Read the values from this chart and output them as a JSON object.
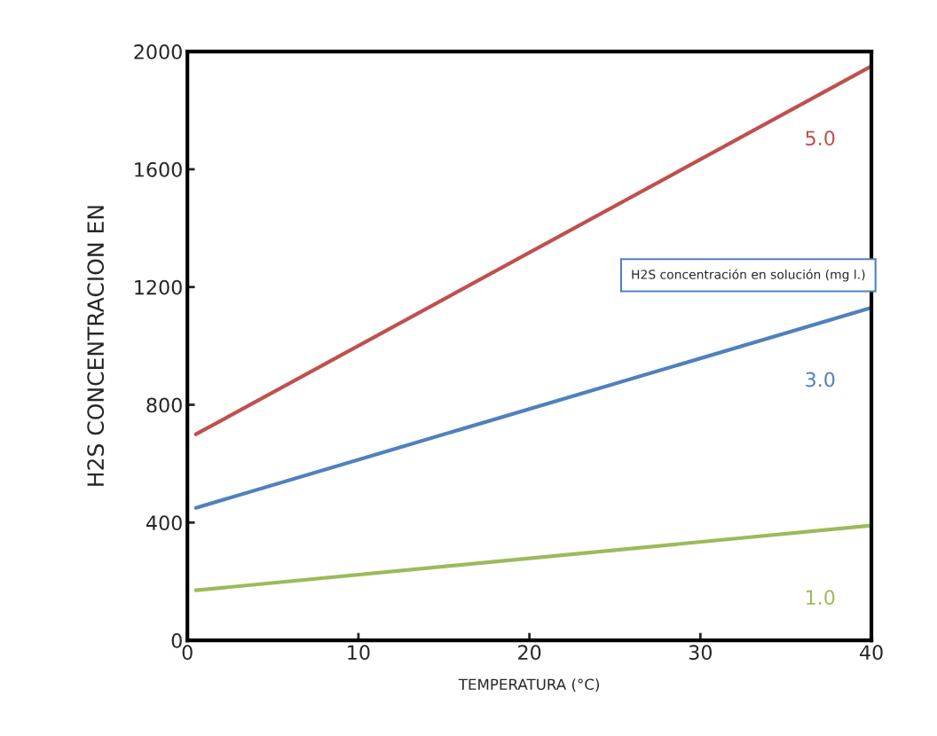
{
  "chart_data": {
    "type": "line",
    "xlabel": "TEMPERATURA (°C)",
    "ylabel": "H2S CONCENTRACION EN",
    "annotations": [
      "H2S concentración en solución (mg l.)"
    ],
    "x": [
      0.5,
      40
    ],
    "series": [
      {
        "name": "5.0",
        "color": "#c0504d",
        "values": [
          700,
          1950
        ]
      },
      {
        "name": "3.0",
        "color": "#4f81bd",
        "values": [
          450,
          1130
        ]
      },
      {
        "name": "1.0",
        "color": "#9bbb59",
        "values": [
          170,
          390
        ]
      }
    ],
    "xlim": [
      0,
      40
    ],
    "xticks": [
      0,
      10,
      20,
      30,
      40
    ],
    "ylim": [
      0,
      2000
    ],
    "yticks": [
      0,
      400,
      800,
      1200,
      1600,
      2000
    ],
    "grid": false,
    "legend": false,
    "marker": "none",
    "line_style": "solid"
  }
}
